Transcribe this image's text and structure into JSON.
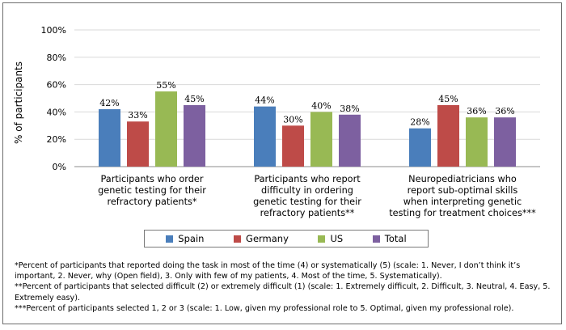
{
  "chart_data": {
    "type": "bar",
    "ylabel": "% of participants",
    "ylim": [
      0,
      100
    ],
    "yticks": [
      "0%",
      "20%",
      "40%",
      "60%",
      "80%",
      "100%"
    ],
    "grid": true,
    "legend_position": "bottom",
    "categories": [
      [
        "Participants who order",
        "genetic testing for their",
        "refractory patients*"
      ],
      [
        "Participants who report",
        "difficulty in ordering",
        "genetic testing for their",
        "refractory patients**"
      ],
      [
        "Neuropediatricians who",
        "report sub-optimal skills",
        "when interpreting genetic",
        "testing for treatment choices***"
      ]
    ],
    "series": [
      {
        "name": "Spain",
        "color": "#4a7ebb",
        "values": [
          42,
          44,
          28
        ],
        "labels": [
          "42%",
          "44%",
          "28%"
        ]
      },
      {
        "name": "Germany",
        "color": "#be4b48",
        "values": [
          33,
          30,
          45
        ],
        "labels": [
          "33%",
          "30%",
          "45%"
        ]
      },
      {
        "name": "US",
        "color": "#98b954",
        "values": [
          55,
          40,
          36
        ],
        "labels": [
          "55%",
          "40%",
          "36%"
        ]
      },
      {
        "name": "Total",
        "color": "#7d60a0",
        "values": [
          45,
          38,
          36
        ],
        "labels": [
          "45%",
          "38%",
          "36%"
        ]
      }
    ]
  },
  "footnotes": {
    "line1": "*Percent of participants that reported doing the task in most of the time (4) or systematically (5) (scale: 1. Never, I don’t think it’s important, 2. Never, why (Open field), 3. Only with few of my patients, 4. Most of the time, 5. Systematically).",
    "line2": "**Percent of participants that selected difficult (2) or extremely difficult (1) (scale: 1. Extremely difficult, 2. Difficult, 3. Neutral, 4. Easy, 5. Extremely easy).",
    "line3": "***Percent of participants selected 1, 2 or 3 (scale: 1. Low, given my professional role to 5. Optimal, given my professional role)."
  }
}
